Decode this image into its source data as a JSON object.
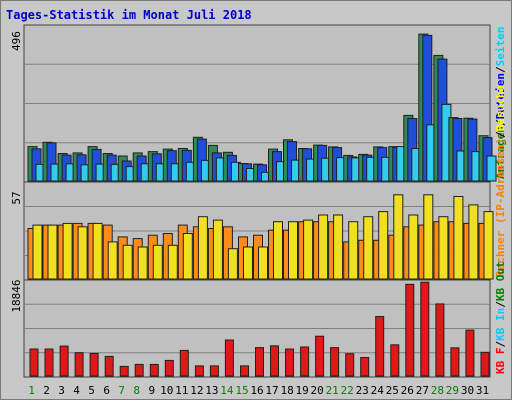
{
  "title": "Tages-Statistik im Monat Juli 2018",
  "chart_data": {
    "type": "bar",
    "categories": [
      "1",
      "2",
      "3",
      "4",
      "5",
      "6",
      "7",
      "8",
      "9",
      "10",
      "11",
      "12",
      "13",
      "14",
      "15",
      "16",
      "17",
      "18",
      "19",
      "20",
      "21",
      "22",
      "23",
      "24",
      "25",
      "26",
      "27",
      "28",
      "29",
      "30",
      "31"
    ],
    "weekend_days": [
      "1",
      "7",
      "8",
      "14",
      "15",
      "21",
      "22",
      "28",
      "29"
    ],
    "panels": [
      {
        "ytick": "496",
        "ymax": 496,
        "legend": [
          {
            "text": "Anfragen",
            "color": "#008000"
          },
          {
            "text": "/",
            "color": "#000000"
          },
          {
            "text": "Dateien",
            "color": "#0000ff"
          },
          {
            "text": "/",
            "color": "#000000"
          },
          {
            "text": "Seiten",
            "color": "#00ccff"
          }
        ],
        "series": [
          {
            "name": "Anfragen",
            "color": "#2e8b57",
            "values": [
              110,
              124,
              88,
              90,
              110,
              88,
              80,
              90,
              94,
              102,
              104,
              140,
              114,
              92,
              56,
              54,
              102,
              132,
              104,
              115,
              109,
              82,
              85,
              109,
              110,
              210,
              470,
              402,
              203,
              201,
              145
            ]
          },
          {
            "name": "Dateien",
            "color": "#1f4ed8",
            "values": [
              103,
              122,
              83,
              84,
              101,
              83,
              64,
              80,
              87,
              97,
              98,
              134,
              90,
              82,
              55,
              52,
              94,
              126,
              103,
              114,
              107,
              77,
              83,
              107,
              108,
              200,
              466,
              390,
              200,
              198,
              139
            ]
          },
          {
            "name": "Seiten",
            "color": "#33ccee",
            "values": [
              53,
              54,
              55,
              52,
              54,
              53,
              46,
              55,
              55,
              55,
              60,
              66,
              74,
              60,
              40,
              28,
              62,
              67,
              70,
              73,
              75,
              74,
              76,
              76,
              110,
              104,
              180,
              245,
              96,
              94,
              80
            ]
          }
        ]
      },
      {
        "ytick": "57",
        "ymax": 57,
        "legend": [
          {
            "text": "Rechner (IP-Adressen)",
            "color": "#ff8000"
          },
          {
            "text": "/",
            "color": "#000000"
          },
          {
            "text": "Besuche",
            "color": "#ffff00"
          }
        ],
        "series": [
          {
            "name": "Rechner (IP-Adressen)",
            "color": "#ff8c1a",
            "values": [
              30,
              32,
              32,
              33,
              33,
              32,
              25,
              24,
              26,
              27,
              32,
              31,
              30,
              31,
              25,
              26,
              29,
              29,
              34,
              34,
              34,
              22,
              23,
              23,
              26,
              31,
              32,
              34,
              34,
              33,
              33
            ]
          },
          {
            "name": "Besuche",
            "color": "#f0e020",
            "values": [
              32,
              32,
              33,
              31,
              33,
              22,
              20,
              19,
              20,
              20,
              27,
              37,
              35,
              18,
              19,
              19,
              34,
              34,
              35,
              38,
              38,
              34,
              37,
              40,
              50,
              38,
              50,
              37,
              49,
              44,
              40
            ]
          }
        ]
      },
      {
        "ytick": "18846",
        "ymax": 18846,
        "legend": [
          {
            "text": "KB F",
            "color": "#ff0000"
          },
          {
            "text": "/",
            "color": "#000000"
          },
          {
            "text": "KB In",
            "color": "#00ccff"
          },
          {
            "text": "/",
            "color": "#000000"
          },
          {
            "text": "KB Out",
            "color": "#008000"
          }
        ],
        "series": [
          {
            "name": "KB F",
            "color": "#e01818",
            "values": [
              5350,
              5350,
              5940,
              4620,
              4480,
              3880,
              1900,
              2300,
              2300,
              3100,
              5070,
              2000,
              2000,
              7150,
              2000,
              5640,
              6000,
              5360,
              5760,
              7890,
              5640,
              4430,
              3670,
              11800,
              6190,
              18200,
              18600,
              14300,
              5600,
              9100,
              4700
            ]
          }
        ]
      }
    ]
  }
}
